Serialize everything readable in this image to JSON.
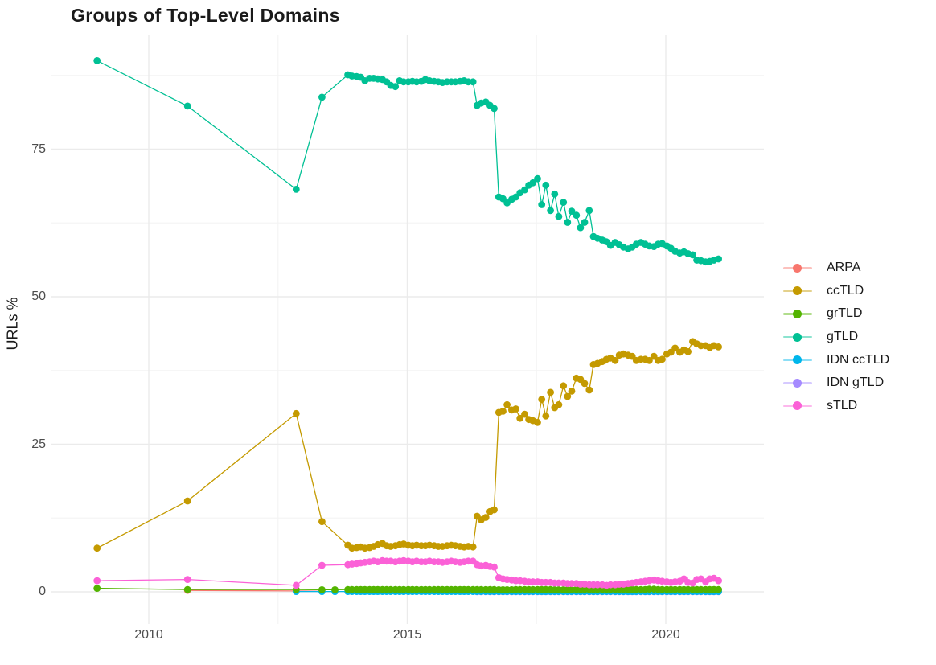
{
  "page": {
    "background": "#FFFFFF"
  },
  "chart_data": {
    "type": "line",
    "title": "Groups of Top-Level Domains",
    "ylabel": "URLs %",
    "xlabel": "",
    "legend_position": "right",
    "colors": {
      "background": "#FFFFFF",
      "grid_major": "#EBEBEB",
      "grid_minor": "#F4F4F4",
      "title_text": "#1A1A1A",
      "tick_text": "#4D4D4D",
      "axis_label_text": "#1A1A1A",
      "legend_text": "#1A1A1A"
    },
    "x_axis": {
      "ticks_major": [
        2010,
        2015,
        2020
      ],
      "ticks_minor": [
        2012.5,
        2017.5
      ],
      "range": [
        2008.1,
        2021.9
      ]
    },
    "y_axis": {
      "ticks_major": [
        0,
        25,
        50,
        75
      ],
      "ticks_minor": [
        12.5,
        37.5,
        62.5,
        87.5
      ],
      "range": [
        -1.2,
        94.3
      ]
    },
    "monthly_x": [
      2013.85,
      2013.93,
      2014.02,
      2014.1,
      2014.18,
      2014.27,
      2014.35,
      2014.43,
      2014.52,
      2014.6,
      2014.68,
      2014.77,
      2014.85,
      2014.93,
      2015.02,
      2015.1,
      2015.18,
      2015.27,
      2015.35,
      2015.43,
      2015.52,
      2015.6,
      2015.68,
      2015.77,
      2015.85,
      2015.93,
      2016.02,
      2016.1,
      2016.18,
      2016.27,
      2016.35,
      2016.43,
      2016.52,
      2016.6,
      2016.68,
      2016.77,
      2016.85,
      2016.93,
      2017.02,
      2017.1,
      2017.18,
      2017.27,
      2017.35,
      2017.43,
      2017.52,
      2017.6,
      2017.68,
      2017.77,
      2017.85,
      2017.93,
      2018.02,
      2018.1,
      2018.18,
      2018.27,
      2018.35,
      2018.43,
      2018.52,
      2018.6,
      2018.68,
      2018.77,
      2018.85,
      2018.93,
      2019.02,
      2019.1,
      2019.18,
      2019.27,
      2019.35,
      2019.43,
      2019.52,
      2019.6,
      2019.68,
      2019.77,
      2019.85,
      2019.93,
      2020.02,
      2020.1,
      2020.18,
      2020.27,
      2020.35,
      2020.43,
      2020.52,
      2020.6,
      2020.68,
      2020.77,
      2020.85,
      2020.93,
      2021.02
    ],
    "series": [
      {
        "name": "ARPA",
        "color": "#F8766D",
        "early": [
          [
            2010.75,
            0.25
          ],
          [
            2012.85,
            0.15
          ],
          [
            2013.35,
            0.1
          ]
        ],
        "monthly_values": null
      },
      {
        "name": "ccTLD",
        "color": "#C49A00",
        "early": [
          [
            2009.0,
            7.4
          ],
          [
            2010.75,
            15.4
          ],
          [
            2012.85,
            30.2
          ],
          [
            2013.35,
            11.9
          ]
        ],
        "monthly_values": [
          7.9,
          7.4,
          7.5,
          7.6,
          7.4,
          7.5,
          7.7,
          8.0,
          8.2,
          7.8,
          7.7,
          7.8,
          8.0,
          8.1,
          7.9,
          7.8,
          7.9,
          7.8,
          7.8,
          7.9,
          7.8,
          7.7,
          7.7,
          7.8,
          7.9,
          7.8,
          7.7,
          7.6,
          7.7,
          7.6,
          12.8,
          12.2,
          12.6,
          13.6,
          13.9,
          30.4,
          30.6,
          31.7,
          30.8,
          31.0,
          29.4,
          30.1,
          29.2,
          29.0,
          28.7,
          32.6,
          29.8,
          33.8,
          31.2,
          31.7,
          34.9,
          33.1,
          34.0,
          36.2,
          36.0,
          35.3,
          34.2,
          38.5,
          38.7,
          39.0,
          39.4,
          39.6,
          39.2,
          40.1,
          40.3,
          40.1,
          39.9,
          39.2,
          39.4,
          39.4,
          39.2,
          39.9,
          39.2,
          39.4,
          40.3,
          40.6,
          41.3,
          40.6,
          41.0,
          40.7,
          42.4,
          42.0,
          41.7,
          41.7,
          41.4,
          41.7,
          41.5
        ]
      },
      {
        "name": "grTLD",
        "color": "#53B400",
        "early": [
          [
            2009.0,
            0.6
          ],
          [
            2010.75,
            0.4
          ],
          [
            2012.85,
            0.4
          ],
          [
            2013.35,
            0.35
          ],
          [
            2013.6,
            0.35
          ]
        ],
        "monthly_values": [
          0.4,
          0.4,
          0.4,
          0.4,
          0.4,
          0.4,
          0.4,
          0.4,
          0.4,
          0.4,
          0.4,
          0.4,
          0.4,
          0.4,
          0.4,
          0.4,
          0.4,
          0.4,
          0.4,
          0.4,
          0.4,
          0.4,
          0.4,
          0.4,
          0.4,
          0.4,
          0.4,
          0.4,
          0.4,
          0.4,
          0.4,
          0.4,
          0.4,
          0.4,
          0.4,
          0.35,
          0.35,
          0.35,
          0.35,
          0.4,
          0.4,
          0.4,
          0.4,
          0.4,
          0.4,
          0.4,
          0.4,
          0.4,
          0.35,
          0.35,
          0.35,
          0.35,
          0.35,
          0.4,
          0.4,
          0.4,
          0.4,
          0.4,
          0.4,
          0.4,
          0.4,
          0.4,
          0.4,
          0.4,
          0.4,
          0.4,
          0.4,
          0.4,
          0.4,
          0.4,
          0.45,
          0.45,
          0.4,
          0.4,
          0.4,
          0.4,
          0.4,
          0.4,
          0.4,
          0.4,
          0.4,
          0.4,
          0.4,
          0.4,
          0.4,
          0.4,
          0.4
        ]
      },
      {
        "name": "gTLD",
        "color": "#00C094",
        "early": [
          [
            2009.0,
            90.0
          ],
          [
            2010.75,
            82.3
          ],
          [
            2012.85,
            68.2
          ],
          [
            2013.35,
            83.8
          ]
        ],
        "monthly_values": [
          87.6,
          87.4,
          87.3,
          87.2,
          86.6,
          87.0,
          87.0,
          86.9,
          86.8,
          86.4,
          85.8,
          85.6,
          86.6,
          86.4,
          86.4,
          86.5,
          86.4,
          86.5,
          86.8,
          86.6,
          86.5,
          86.4,
          86.3,
          86.4,
          86.4,
          86.4,
          86.5,
          86.6,
          86.4,
          86.4,
          82.4,
          82.8,
          83.0,
          82.4,
          81.9,
          66.9,
          66.6,
          65.9,
          66.5,
          66.9,
          67.6,
          68.1,
          68.9,
          69.3,
          70.0,
          65.6,
          68.9,
          64.6,
          67.4,
          63.6,
          66.0,
          62.6,
          64.5,
          63.8,
          61.7,
          62.6,
          64.6,
          60.2,
          59.9,
          59.6,
          59.3,
          58.7,
          59.2,
          58.8,
          58.4,
          58.1,
          58.4,
          58.9,
          59.2,
          58.9,
          58.6,
          58.5,
          58.9,
          59.0,
          58.6,
          58.2,
          57.7,
          57.4,
          57.6,
          57.3,
          57.1,
          56.2,
          56.1,
          55.9,
          56.0,
          56.2,
          56.4
        ]
      },
      {
        "name": "IDN ccTLD",
        "color": "#00B6EB",
        "early": [
          [
            2012.85,
            0.05
          ],
          [
            2013.35,
            0.05
          ],
          [
            2013.6,
            0.05
          ]
        ],
        "monthly_values": [
          0.05,
          0.05,
          0.05,
          0.05,
          0.05,
          0.05,
          0.05,
          0.05,
          0.05,
          0.05,
          0.05,
          0.05,
          0.05,
          0.05,
          0.05,
          0.05,
          0.05,
          0.05,
          0.05,
          0.05,
          0.05,
          0.05,
          0.05,
          0.05,
          0.05,
          0.05,
          0.05,
          0.05,
          0.05,
          0.05,
          0.05,
          0.05,
          0.05,
          0.05,
          0.05,
          0.05,
          0.05,
          0.05,
          0.05,
          0.05,
          0.05,
          0.05,
          0.05,
          0.05,
          0.05,
          0.05,
          0.05,
          0.05,
          0.05,
          0.05,
          0.05,
          0.05,
          0.05,
          0.05,
          0.05,
          0.05,
          0.05,
          0.05,
          0.05,
          0.05,
          0.05,
          0.05,
          0.05,
          0.05,
          0.05,
          0.05,
          0.05,
          0.05,
          0.05,
          0.05,
          0.05,
          0.05,
          0.05,
          0.05,
          0.05,
          0.05,
          0.05,
          0.05,
          0.05,
          0.05,
          0.05,
          0.05,
          0.05,
          0.05,
          0.05,
          0.05,
          0.05
        ]
      },
      {
        "name": "IDN gTLD",
        "color": "#A58AFF",
        "early": [],
        "monthly_values": [
          null,
          null,
          null,
          null,
          null,
          null,
          null,
          null,
          null,
          null,
          null,
          null,
          null,
          null,
          null,
          null,
          null,
          null,
          null,
          null,
          null,
          null,
          null,
          null,
          null,
          null,
          null,
          null,
          null,
          null,
          0.02,
          0.02,
          0.02,
          0.02,
          0.02,
          0.02,
          0.02,
          0.02,
          0.02,
          0.02,
          0.02,
          0.02,
          0.02,
          0.02,
          0.02,
          0.02,
          0.02,
          0.02,
          0.02,
          0.02,
          0.02,
          0.02,
          0.02,
          0.02,
          0.02,
          0.02,
          0.02,
          0.02,
          0.02,
          0.02,
          0.02,
          0.02,
          0.02,
          0.02,
          0.02,
          0.02,
          0.02,
          0.02,
          0.02,
          0.02,
          0.02,
          0.02,
          0.02,
          0.02,
          0.02,
          0.02,
          0.02,
          0.02,
          0.02,
          0.02,
          0.02,
          0.02,
          0.02,
          0.02,
          0.02,
          0.02,
          0.02
        ]
      },
      {
        "name": "sTLD",
        "color": "#FB61D7",
        "early": [
          [
            2009.0,
            1.9
          ],
          [
            2010.75,
            2.1
          ],
          [
            2012.85,
            1.1
          ],
          [
            2013.35,
            4.5
          ]
        ],
        "monthly_values": [
          4.6,
          4.7,
          4.8,
          4.9,
          5.0,
          5.1,
          5.2,
          5.1,
          5.3,
          5.2,
          5.2,
          5.1,
          5.2,
          5.3,
          5.2,
          5.1,
          5.2,
          5.1,
          5.1,
          5.2,
          5.1,
          5.1,
          5.0,
          5.1,
          5.2,
          5.1,
          5.0,
          5.1,
          5.2,
          5.2,
          4.6,
          4.4,
          4.5,
          4.3,
          4.2,
          2.4,
          2.2,
          2.1,
          2.0,
          1.9,
          1.9,
          1.8,
          1.7,
          1.7,
          1.7,
          1.6,
          1.6,
          1.6,
          1.5,
          1.5,
          1.5,
          1.4,
          1.4,
          1.4,
          1.3,
          1.3,
          1.2,
          1.2,
          1.2,
          1.2,
          1.1,
          1.2,
          1.2,
          1.3,
          1.3,
          1.4,
          1.5,
          1.6,
          1.7,
          1.8,
          1.9,
          2.0,
          1.9,
          1.8,
          1.7,
          1.6,
          1.7,
          1.8,
          2.2,
          1.6,
          1.5,
          2.1,
          2.2,
          1.7,
          2.2,
          2.3,
          1.9
        ]
      }
    ]
  }
}
